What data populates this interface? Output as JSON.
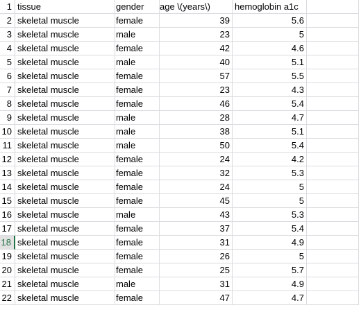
{
  "selected_row": 18,
  "headers": [
    "tissue",
    "gender",
    "age \\(years\\)",
    "hemoglobin a1c"
  ],
  "rows": [
    {
      "num": "2",
      "tissue": "skeletal muscle",
      "gender": "female",
      "age": "39",
      "hba1c": "5.6"
    },
    {
      "num": "3",
      "tissue": "skeletal muscle",
      "gender": "male",
      "age": "23",
      "hba1c": "5"
    },
    {
      "num": "4",
      "tissue": "skeletal muscle",
      "gender": "female",
      "age": "42",
      "hba1c": "4.6"
    },
    {
      "num": "5",
      "tissue": "skeletal muscle",
      "gender": "male",
      "age": "40",
      "hba1c": "5.1"
    },
    {
      "num": "6",
      "tissue": "skeletal muscle",
      "gender": "female",
      "age": "57",
      "hba1c": "5.5"
    },
    {
      "num": "7",
      "tissue": "skeletal muscle",
      "gender": "female",
      "age": "23",
      "hba1c": "4.3"
    },
    {
      "num": "8",
      "tissue": "skeletal muscle",
      "gender": "female",
      "age": "46",
      "hba1c": "5.4"
    },
    {
      "num": "9",
      "tissue": "skeletal muscle",
      "gender": "male",
      "age": "28",
      "hba1c": "4.7"
    },
    {
      "num": "10",
      "tissue": "skeletal muscle",
      "gender": "male",
      "age": "38",
      "hba1c": "5.1"
    },
    {
      "num": "11",
      "tissue": "skeletal muscle",
      "gender": "male",
      "age": "50",
      "hba1c": "5.4"
    },
    {
      "num": "12",
      "tissue": "skeletal muscle",
      "gender": "female",
      "age": "24",
      "hba1c": "4.2"
    },
    {
      "num": "13",
      "tissue": "skeletal muscle",
      "gender": "female",
      "age": "32",
      "hba1c": "5.3"
    },
    {
      "num": "14",
      "tissue": "skeletal muscle",
      "gender": "female",
      "age": "24",
      "hba1c": "5"
    },
    {
      "num": "15",
      "tissue": "skeletal muscle",
      "gender": "female",
      "age": "45",
      "hba1c": "5"
    },
    {
      "num": "16",
      "tissue": "skeletal muscle",
      "gender": "male",
      "age": "43",
      "hba1c": "5.3"
    },
    {
      "num": "17",
      "tissue": "skeletal muscle",
      "gender": "female",
      "age": "37",
      "hba1c": "5.4"
    },
    {
      "num": "18",
      "tissue": "skeletal muscle",
      "gender": "female",
      "age": "31",
      "hba1c": "4.9"
    },
    {
      "num": "19",
      "tissue": "skeletal muscle",
      "gender": "female",
      "age": "26",
      "hba1c": "5"
    },
    {
      "num": "20",
      "tissue": "skeletal muscle",
      "gender": "female",
      "age": "25",
      "hba1c": "5.7"
    },
    {
      "num": "21",
      "tissue": "skeletal muscle",
      "gender": "male",
      "age": "31",
      "hba1c": "4.9"
    },
    {
      "num": "22",
      "tissue": "skeletal muscle",
      "gender": "female",
      "age": "47",
      "hba1c": "4.7"
    }
  ],
  "colors": {
    "gridline": "#dadcdf",
    "selected_row_header_text": "#217346",
    "selected_row_header_bg": "#e1e1e1"
  }
}
